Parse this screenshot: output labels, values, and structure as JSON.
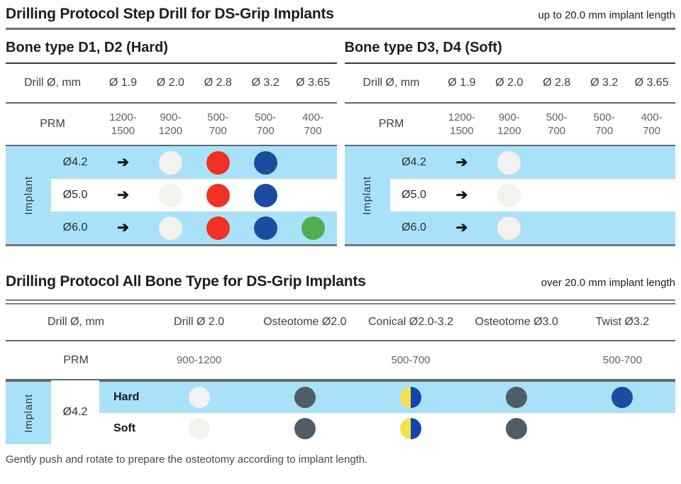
{
  "colors": {
    "row_blue": "#a9e2f8",
    "white": "#f3f2ef",
    "red": "#f03123",
    "navy": "#1a4da1",
    "green": "#4db04f",
    "slate": "#4e5d68",
    "dual_yellow": "#f5e14d",
    "dual_blue": "#1445a8"
  },
  "section_step_drill": {
    "title": "Drilling Protocol Step Drill for DS-Grip Implants",
    "note": "up to 20.0 mm implant length",
    "tables": [
      {
        "subtitle": "Bone type D1, D2 (Hard)",
        "drill_col_header": "Drill Ø, mm",
        "drill_sizes": [
          "Ø 1.9",
          "Ø 2.0",
          "Ø 2.8",
          "Ø 3.2",
          "Ø 3.65"
        ],
        "prm_label": "PRM",
        "prm_values": [
          "1200-\n1500",
          "900-\n1200",
          "500-\n700",
          "500-\n700",
          "400-\n700"
        ],
        "implant_axis": "Implant",
        "rows": [
          {
            "implant": "Ø4.2",
            "cells": [
              "arrow",
              "white",
              "red",
              "navy",
              ""
            ]
          },
          {
            "implant": "Ø5.0",
            "cells": [
              "arrow",
              "white",
              "red",
              "navy",
              ""
            ]
          },
          {
            "implant": "Ø6.0",
            "cells": [
              "arrow",
              "white",
              "red",
              "navy",
              "green"
            ]
          }
        ]
      },
      {
        "subtitle": "Bone type D3, D4 (Soft)",
        "drill_col_header": "Drill Ø, mm",
        "drill_sizes": [
          "Ø 1.9",
          "Ø 2.0",
          "Ø 2.8",
          "Ø 3.2",
          "Ø 3.65"
        ],
        "prm_label": "PRM",
        "prm_values": [
          "1200-\n1500",
          "900-\n1200",
          "500-\n700",
          "500-\n700",
          "400-\n700"
        ],
        "implant_axis": "Implant",
        "rows": [
          {
            "implant": "Ø4.2",
            "cells": [
              "arrow",
              "white",
              "",
              "",
              ""
            ]
          },
          {
            "implant": "Ø5.0",
            "cells": [
              "arrow",
              "white",
              "",
              "",
              ""
            ]
          },
          {
            "implant": "Ø6.0",
            "cells": [
              "arrow",
              "white",
              "",
              "",
              ""
            ]
          }
        ]
      }
    ]
  },
  "section_all_bone": {
    "title": "Drilling Protocol All Bone Type for DS-Grip Implants",
    "note": "over 20.0 mm implant length",
    "drill_col_header": "Drill Ø, mm",
    "tool_headers": [
      "Drill Ø 2.0",
      "Osteotome Ø2.0",
      "Conical Ø2.0-3.2",
      "Osteotome Ø3.0",
      "Twist Ø3.2"
    ],
    "prm_label": "PRM",
    "prm_values": [
      "900-1200",
      "",
      "500-700",
      "",
      "500-700"
    ],
    "implant_axis": "Implant",
    "implant_size": "Ø4.2",
    "rows": [
      {
        "bone": "Hard",
        "cells": [
          "white",
          "slate",
          "dual",
          "slate",
          "navy"
        ]
      },
      {
        "bone": "Soft",
        "cells": [
          "white",
          "slate",
          "dual",
          "slate",
          ""
        ]
      }
    ]
  },
  "footer_note": "Gently push and rotate to prepare the osteotomy according to implant length."
}
